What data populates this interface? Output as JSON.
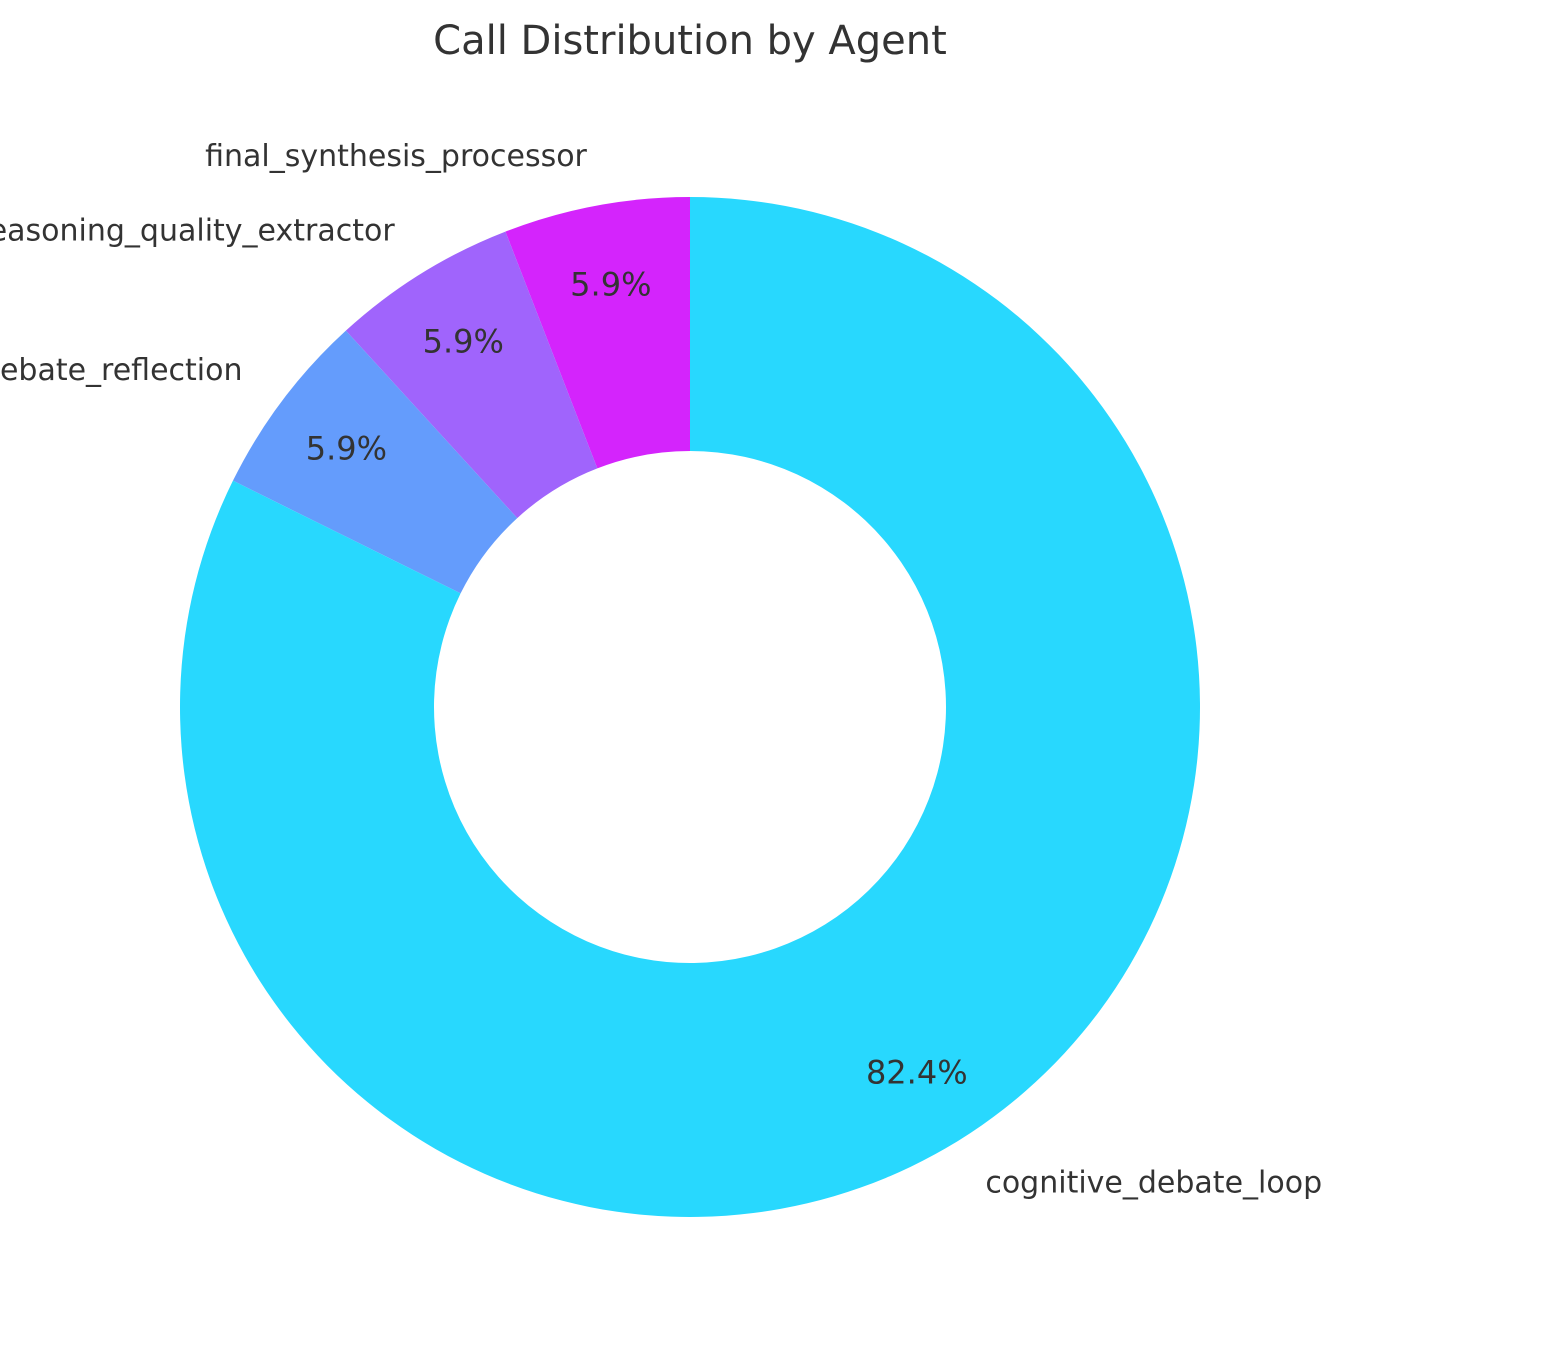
{
  "chart_data": {
    "type": "pie",
    "title": "Call Distribution by Agent",
    "donut": true,
    "start": "top",
    "direction": "counterclockwise",
    "slices": [
      {
        "label": "final_synthesis_processor",
        "value": 5.9,
        "pct_label": "5.9%",
        "color": "#d424fc"
      },
      {
        "label": "reasoning_quality_extractor",
        "value": 5.9,
        "pct_label": "5.9%",
        "color": "#a064fc"
      },
      {
        "label": "meta_debate_reflection",
        "value": 5.9,
        "pct_label": "5.9%",
        "color": "#649cfc"
      },
      {
        "label": "cognitive_debate_loop",
        "value": 82.4,
        "pct_label": "82.4%",
        "color": "#28d8fe"
      }
    ]
  }
}
